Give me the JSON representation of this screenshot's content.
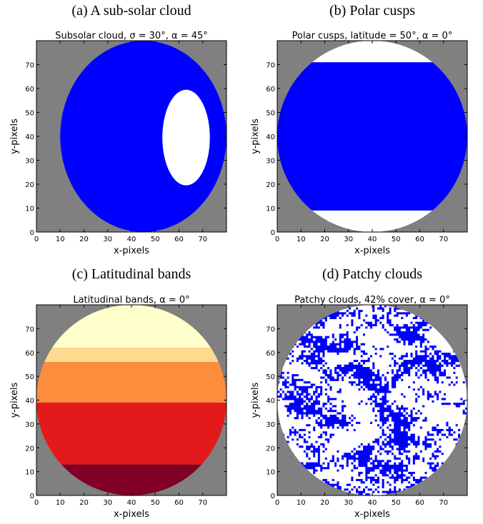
{
  "chart_data": [
    {
      "type": "image",
      "caption": "(a) A sub-solar cloud",
      "title": "Subsolar cloud, σ = 30°, α = 45°",
      "x_label": "x-pixels",
      "y_label": "y-pixels",
      "xlim": [
        0,
        80
      ],
      "ylim": [
        0,
        80
      ],
      "xticks": [
        0,
        10,
        20,
        30,
        40,
        50,
        60,
        70
      ],
      "yticks": [
        0,
        10,
        20,
        30,
        40,
        50,
        60,
        70
      ]
    },
    {
      "type": "image",
      "caption": "(b) Polar cusps",
      "title": "Polar cusps, latitude = 50°, α = 0°",
      "x_label": "x-pixels",
      "y_label": "y-pixels",
      "xlim": [
        0,
        80
      ],
      "ylim": [
        0,
        80
      ],
      "xticks": [
        0,
        10,
        20,
        30,
        40,
        50,
        60,
        70
      ],
      "yticks": [
        0,
        10,
        20,
        30,
        40,
        50,
        60,
        70
      ]
    },
    {
      "type": "image",
      "caption": "(c) Latitudinal bands",
      "title": "Latitudinal bands, α = 0°",
      "x_label": "x-pixels",
      "y_label": "y-pixels",
      "xlim": [
        0,
        80
      ],
      "ylim": [
        0,
        80
      ],
      "xticks": [
        0,
        10,
        20,
        30,
        40,
        50,
        60,
        70
      ],
      "yticks": [
        0,
        10,
        20,
        30,
        40,
        50,
        60,
        70
      ]
    },
    {
      "type": "image",
      "caption": "(d) Patchy clouds",
      "title": "Patchy clouds, 42% cover, α = 0°",
      "x_label": "x-pixels",
      "y_label": "y-pixels",
      "xlim": [
        0,
        80
      ],
      "ylim": [
        0,
        80
      ],
      "xticks": [
        0,
        10,
        20,
        30,
        40,
        50,
        60,
        70
      ],
      "yticks": [
        0,
        10,
        20,
        30,
        40,
        50,
        60,
        70
      ]
    }
  ]
}
